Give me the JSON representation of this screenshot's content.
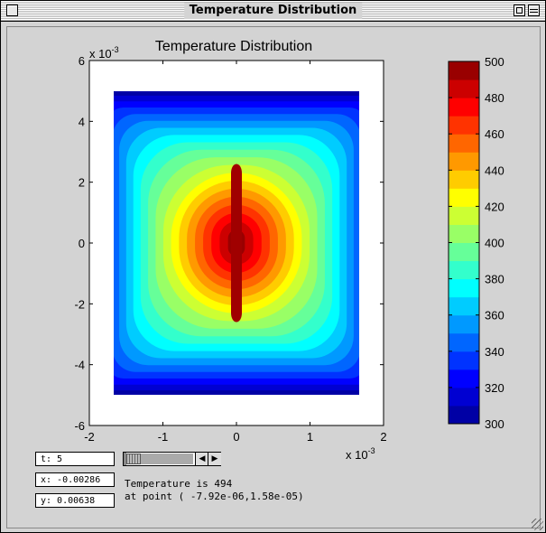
{
  "window": {
    "title": "Temperature Distribution"
  },
  "plot": {
    "title": "Temperature Distribution",
    "y_multiplier": "x 10",
    "y_exponent": "-3",
    "x_multiplier": "x 10",
    "x_exponent": "-3",
    "x_ticks": [
      "-2",
      "-1",
      "0",
      "1",
      "2"
    ],
    "y_ticks": [
      "6",
      "4",
      "2",
      "0",
      "-2",
      "-4",
      "-6"
    ]
  },
  "colorbar": {
    "range": [
      300,
      500
    ],
    "ticks": [
      "500",
      "480",
      "460",
      "440",
      "420",
      "400",
      "380",
      "360",
      "340",
      "320",
      "300"
    ],
    "colormap": [
      "#00008f",
      "#0000ff",
      "#0080ff",
      "#00ffff",
      "#80ff80",
      "#ffff00",
      "#ff8000",
      "#ff0000",
      "#800000"
    ]
  },
  "chart_data": {
    "type": "heatmap",
    "title": "Temperature Distribution",
    "x_range": [
      -0.002,
      0.002
    ],
    "y_range": [
      -0.005,
      0.005
    ],
    "xlim": [
      -0.002,
      0.002
    ],
    "ylim": [
      -0.006,
      0.006
    ],
    "value_range": [
      300,
      500
    ],
    "max_value_approx": 500,
    "min_value_approx": 300
  },
  "controls": {
    "t_field": "t:  5",
    "x_field": "x: -0.00286",
    "y_field": "y:  0.00638",
    "status_line1": "Temperature is 494",
    "status_line2": "at point ( -7.92e-06,1.58e-05)"
  }
}
